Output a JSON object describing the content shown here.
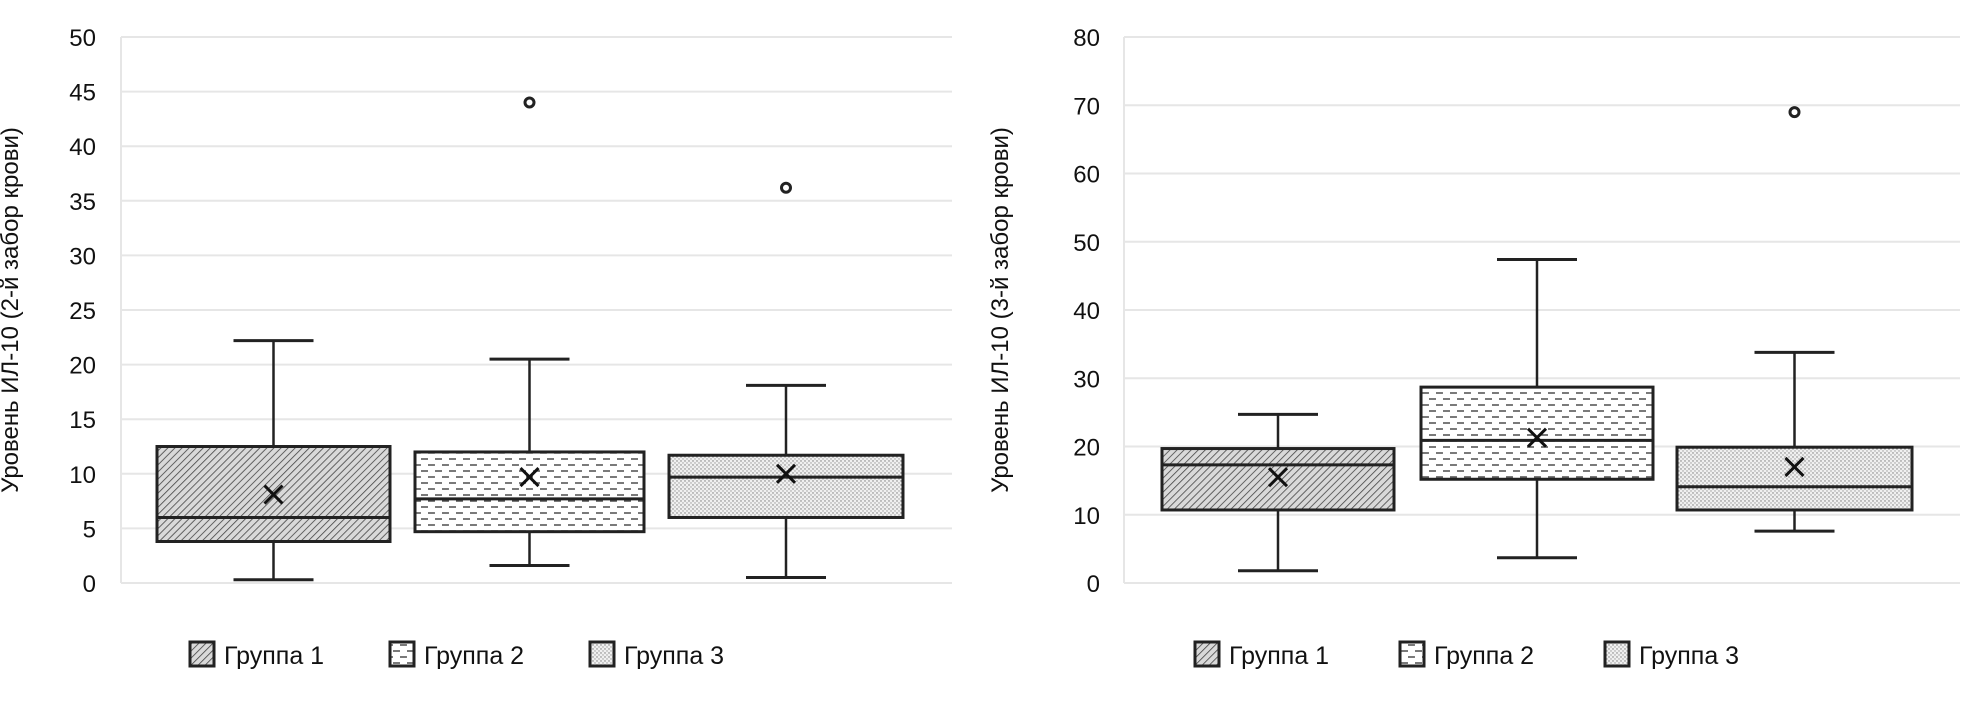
{
  "chart_data": [
    {
      "type": "box",
      "title": "",
      "xlabel": "",
      "ylabel": "Уровень ИЛ-10 (2-й забор крови)",
      "ylim": [
        0,
        50
      ],
      "yticks": [
        0,
        5,
        10,
        15,
        20,
        25,
        30,
        35,
        40,
        45,
        50
      ],
      "grid": true,
      "legend": "bottom",
      "series": [
        {
          "name": "Группа 1",
          "pattern": "diagonal",
          "min": 0.3,
          "q1": 3.8,
          "median": 6.0,
          "q3": 12.5,
          "max": 22.2,
          "mean": 8.1,
          "outliers": []
        },
        {
          "name": "Группа 2",
          "pattern": "dashes",
          "min": 1.6,
          "q1": 4.7,
          "median": 7.7,
          "q3": 12.0,
          "max": 20.5,
          "mean": 9.7,
          "outliers": [
            44.0
          ]
        },
        {
          "name": "Группа 3",
          "pattern": "dots",
          "min": 0.5,
          "q1": 6.0,
          "median": 9.7,
          "q3": 11.7,
          "max": 18.1,
          "mean": 10.0,
          "outliers": [
            36.2
          ]
        }
      ]
    },
    {
      "type": "box",
      "title": "",
      "xlabel": "",
      "ylabel": "Уровень ИЛ-10 (3-й забор крови)",
      "ylim": [
        0,
        80
      ],
      "yticks": [
        0,
        10,
        20,
        30,
        40,
        50,
        60,
        70,
        80
      ],
      "grid": true,
      "legend": "bottom",
      "series": [
        {
          "name": "Группа 1",
          "pattern": "diagonal",
          "min": 1.8,
          "q1": 10.7,
          "median": 17.3,
          "q3": 19.7,
          "max": 24.7,
          "mean": 15.5,
          "outliers": []
        },
        {
          "name": "Группа 2",
          "pattern": "dashes",
          "min": 3.7,
          "q1": 15.2,
          "median": 20.9,
          "q3": 28.7,
          "max": 47.4,
          "mean": 21.3,
          "outliers": []
        },
        {
          "name": "Группа 3",
          "pattern": "dots",
          "min": 7.6,
          "q1": 10.7,
          "median": 14.1,
          "q3": 19.9,
          "max": 33.8,
          "mean": 17.0,
          "outliers": [
            69.0
          ]
        }
      ]
    }
  ]
}
